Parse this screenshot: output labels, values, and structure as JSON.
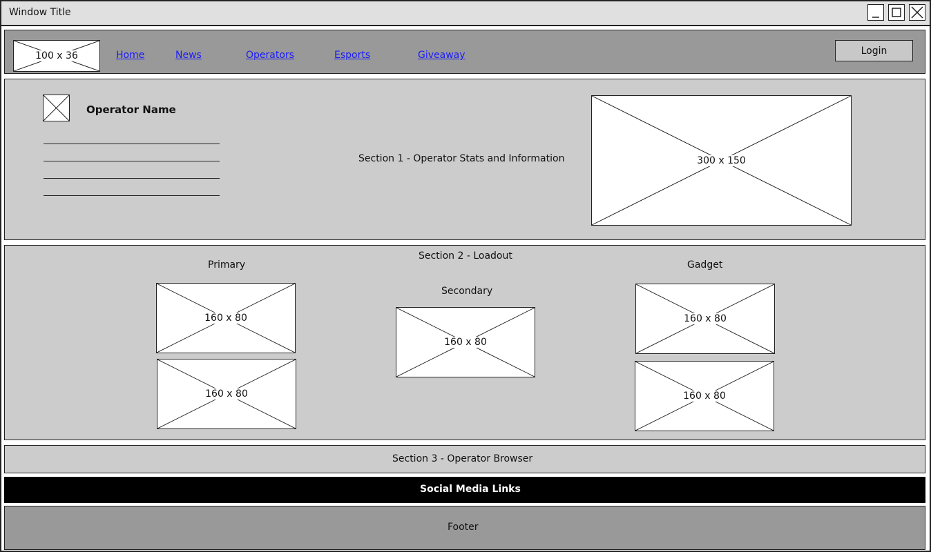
{
  "window": {
    "title": "Window Title"
  },
  "nav": {
    "logo_label": "100 x 36",
    "links": [
      "Home",
      "News",
      "Operators",
      "Esports",
      "Giveaway"
    ],
    "login_label": "Login"
  },
  "section1": {
    "operator_name": "Operator Name",
    "caption": "Section 1 - Operator Stats and Information",
    "image_label": "300 x 150"
  },
  "section2": {
    "caption": "Section 2 - Loadout",
    "primary": {
      "heading": "Primary",
      "slots": [
        "160 x 80",
        "160 x 80"
      ]
    },
    "secondary": {
      "heading": "Secondary",
      "slots": [
        "160 x 80"
      ]
    },
    "gadget": {
      "heading": "Gadget",
      "slots": [
        "160 x 80",
        "160 x 80"
      ]
    }
  },
  "section3": {
    "caption": "Section 3 - Operator Browser"
  },
  "social": {
    "caption": "Social Media Links"
  },
  "footer": {
    "caption": "Footer"
  },
  "colors": {
    "nav_bg": "#999999",
    "section_bg": "#cccccc",
    "social_bg": "#000000",
    "link": "#1a1aff"
  }
}
